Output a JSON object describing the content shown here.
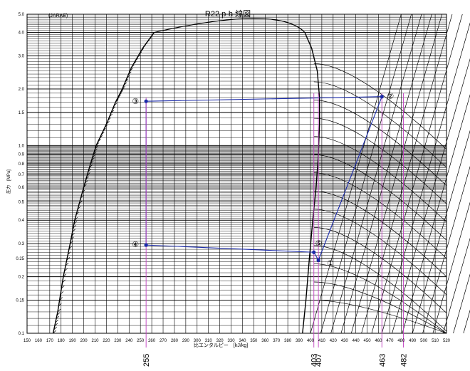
{
  "chart_data": {
    "type": "line",
    "title": "R22 p-h 線図",
    "source_tag": "(JARAE)",
    "xlabel": "比エンタルピー　[kJ/kg]",
    "ylabel": "圧力　[MPa]",
    "y_scale": "log",
    "xlim": [
      150,
      520
    ],
    "ylim": [
      0.1,
      5.0
    ],
    "x_ticks": [
      150,
      160,
      170,
      180,
      190,
      200,
      210,
      220,
      230,
      240,
      250,
      260,
      270,
      280,
      290,
      300,
      310,
      320,
      330,
      340,
      350,
      360,
      370,
      380,
      390,
      400,
      410,
      420,
      430,
      440,
      450,
      460,
      470,
      480,
      490,
      500,
      510,
      520
    ],
    "y_tick_labels": [
      {
        "v": 5.0,
        "t": "5.0"
      },
      {
        "v": 4.0,
        "t": "4.0"
      },
      {
        "v": 3.0,
        "t": "3.0"
      },
      {
        "v": 2.0,
        "t": "2.0"
      },
      {
        "v": 1.5,
        "t": "1.5"
      },
      {
        "v": 1.0,
        "t": "1.0"
      },
      {
        "v": 0.9,
        "t": "0.9"
      },
      {
        "v": 0.8,
        "t": "0.8"
      },
      {
        "v": 0.7,
        "t": "0.7"
      },
      {
        "v": 0.6,
        "t": "0.6"
      },
      {
        "v": 0.5,
        "t": "0.5"
      },
      {
        "v": 0.4,
        "t": "0.4"
      },
      {
        "v": 0.3,
        "t": "0.3"
      },
      {
        "v": 0.25,
        "t": "0.25"
      },
      {
        "v": 0.2,
        "t": "0.2"
      },
      {
        "v": 0.15,
        "t": "0.15"
      },
      {
        "v": 0.1,
        "t": "0.1"
      }
    ],
    "grid": true,
    "saturation_liquid": [
      [
        173,
        0.1
      ],
      [
        177,
        0.13
      ],
      [
        182,
        0.2
      ],
      [
        188,
        0.3
      ],
      [
        192,
        0.4
      ],
      [
        200,
        0.6
      ],
      [
        206,
        0.8
      ],
      [
        211,
        1.0
      ],
      [
        220,
        1.3
      ],
      [
        228,
        1.7
      ],
      [
        234,
        2.0
      ],
      [
        242,
        2.6
      ],
      [
        252,
        3.3
      ],
      [
        262,
        4.0
      ]
    ],
    "saturation_vapor": [
      [
        393,
        0.1
      ],
      [
        396,
        0.15
      ],
      [
        399,
        0.25
      ],
      [
        402,
        0.4
      ],
      [
        405,
        0.6
      ],
      [
        407,
        0.9
      ],
      [
        408,
        1.3
      ],
      [
        408,
        1.8
      ],
      [
        406,
        2.5
      ],
      [
        401,
        3.3
      ],
      [
        395,
        4.0
      ]
    ],
    "critical_point": [
      372,
      4.99
    ],
    "cycle": {
      "points": [
        {
          "label": "①",
          "h": 407,
          "p": 0.245
        },
        {
          "label": "②",
          "h": 463,
          "p": 1.82
        },
        {
          "label": "③",
          "h": 255,
          "p": 1.72
        },
        {
          "label": "④",
          "h": 255,
          "p": 0.295
        },
        {
          "label": "⑤",
          "h": 403,
          "p": 0.27
        }
      ],
      "marked_enthalpies": [
        {
          "h": 255,
          "text": "255"
        },
        {
          "h": 403,
          "text": "403"
        },
        {
          "h": 407,
          "text": "407"
        },
        {
          "h": 463,
          "text": "463"
        },
        {
          "h": 482,
          "text": "482"
        }
      ]
    }
  }
}
